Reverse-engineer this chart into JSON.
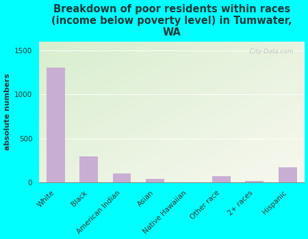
{
  "categories": [
    "White",
    "Black",
    "American Indian",
    "Asian",
    "Native Hawaiian",
    "Other race",
    "2+ races",
    "Hispanic"
  ],
  "values": [
    1300,
    295,
    100,
    40,
    5,
    70,
    18,
    175
  ],
  "bar_color": "#c9aed4",
  "title": "Breakdown of poor residents within races\n(income below poverty level) in Tumwater,\nWA",
  "ylabel": "absolute numbers",
  "ylim": [
    0,
    1600
  ],
  "yticks": [
    0,
    500,
    1000,
    1500
  ],
  "background_color": "#00ffff",
  "plot_bg_color_topleft": "#d8eece",
  "plot_bg_color_bottomright": "#f0f0e8",
  "watermark": "  City-Data.com",
  "title_fontsize": 10.5,
  "ylabel_fontsize": 8,
  "tick_fontsize": 7.5
}
